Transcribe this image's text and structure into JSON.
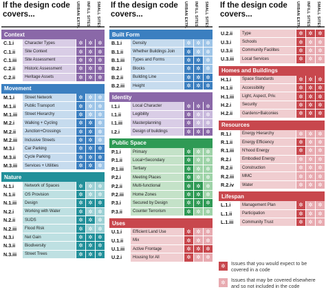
{
  "header": {
    "title": "If the design code covers...",
    "col1": "URBAN EXTN.",
    "col2": "INFILL SITES",
    "col3": "SMALL SITES"
  },
  "icons": {
    "star": "✲"
  },
  "legend": {
    "expected": "Issues that you would expect to be covered in a code",
    "elsewhere": "Issues that may be covered elsewhere and so not included in the code"
  },
  "columns": [
    {
      "sections": [
        {
          "title": "Context",
          "theme": "purple",
          "rows": [
            {
              "code": "C.1.i",
              "label": "Character Types",
              "cells": [
                "d",
                "d",
                "d"
              ]
            },
            {
              "code": "C.1.ii",
              "label": "Site Context",
              "cells": [
                "d",
                "d",
                "d"
              ]
            },
            {
              "code": "C.1.iii",
              "label": "Site Assessment",
              "cells": [
                "d",
                "d",
                "d"
              ]
            },
            {
              "code": "C.2.ii",
              "label": "Historic Assessment",
              "cells": [
                "d",
                "d",
                "d"
              ]
            },
            {
              "code": "C.2.ii",
              "label": "Heritage Assets",
              "cells": [
                "d",
                "d",
                "d"
              ]
            }
          ]
        },
        {
          "title": "Movement",
          "theme": "blue",
          "rows": [
            {
              "code": "M.1.i",
              "label": "Street Network",
              "cells": [
                "d",
                "l",
                "l"
              ]
            },
            {
              "code": "M.1.ii",
              "label": "Public Transport",
              "cells": [
                "d",
                "l",
                "l"
              ]
            },
            {
              "code": "M.1.iii",
              "label": "Street Hierarchy",
              "cells": [
                "d",
                "l",
                "l"
              ]
            },
            {
              "code": "M.2.i",
              "label": "Walking + Cycling",
              "cells": [
                "d",
                "d",
                "l"
              ]
            },
            {
              "code": "M.2.ii",
              "label": "Junction+Crossings",
              "cells": [
                "d",
                "d",
                "l"
              ]
            },
            {
              "code": "M.2.iii",
              "label": "Inclusive Streets",
              "cells": [
                "d",
                "d",
                "l"
              ]
            },
            {
              "code": "M.3.i",
              "label": "Car Parking",
              "cells": [
                "d",
                "d",
                "d"
              ]
            },
            {
              "code": "M.3.ii",
              "label": "Cycle Parking",
              "cells": [
                "d",
                "d",
                "d"
              ]
            },
            {
              "code": "M.3.iii",
              "label": "Services + Utilities",
              "cells": [
                "d",
                "d",
                "l"
              ]
            }
          ]
        },
        {
          "title": "Nature",
          "theme": "teal",
          "rows": [
            {
              "code": "N.1.i",
              "label": "Network of Spaces",
              "cells": [
                "d",
                "l",
                "l"
              ]
            },
            {
              "code": "N.1.ii",
              "label": "OS Provision",
              "cells": [
                "d",
                "l",
                "l"
              ]
            },
            {
              "code": "N.1.iii",
              "label": "Design",
              "cells": [
                "d",
                "d",
                "d"
              ]
            },
            {
              "code": "N.2.i",
              "label": "Working with Water",
              "cells": [
                "d",
                "l",
                "l"
              ]
            },
            {
              "code": "N.2.ii",
              "label": "SUDS",
              "cells": [
                "d",
                "d",
                "l"
              ]
            },
            {
              "code": "N.2.iii",
              "label": "Flood Risk",
              "cells": [
                "d",
                "l",
                "l"
              ]
            },
            {
              "code": "N.3.i",
              "label": "Net Gain",
              "cells": [
                "d",
                "d",
                "d"
              ]
            },
            {
              "code": "N.3.ii",
              "label": "Biodiversity",
              "cells": [
                "d",
                "d",
                "d"
              ]
            },
            {
              "code": "N.3.iii",
              "label": "Street Trees",
              "cells": [
                "d",
                "d",
                "d"
              ]
            }
          ]
        }
      ]
    },
    {
      "sections": [
        {
          "title": "Built Form",
          "theme": "blue",
          "rows": [
            {
              "code": "B.1.i",
              "label": "Density",
              "cells": [
                "l",
                "l",
                "l"
              ]
            },
            {
              "code": "B.1.ii",
              "label": "Whether Buildings Join",
              "cells": [
                "d",
                "l",
                "l"
              ]
            },
            {
              "code": "B.1.iii",
              "label": "Types and Forms",
              "cells": [
                "d",
                "d",
                "l"
              ]
            },
            {
              "code": "B.2.i",
              "label": "Blocks",
              "cells": [
                "d",
                "d",
                "l"
              ]
            },
            {
              "code": "B.2.ii",
              "label": "Building Line",
              "cells": [
                "d",
                "d",
                "d"
              ]
            },
            {
              "code": "B.2.iii",
              "label": "Height",
              "cells": [
                "d",
                "d",
                "d"
              ]
            }
          ]
        },
        {
          "title": "Identity",
          "theme": "purple",
          "rows": [
            {
              "code": "I.1.i",
              "label": "Local Character",
              "cells": [
                "d",
                "d",
                "d"
              ]
            },
            {
              "code": "I.1.ii",
              "label": "Legibility",
              "cells": [
                "d",
                "l",
                "l"
              ]
            },
            {
              "code": "I.1.iii",
              "label": "Masterplanning",
              "cells": [
                "d",
                "l",
                "l"
              ]
            },
            {
              "code": "I.2.i",
              "label": "Design of buildings",
              "cells": [
                "d",
                "d",
                "d"
              ]
            }
          ]
        },
        {
          "title": "Public Space",
          "theme": "green",
          "rows": [
            {
              "code": "P.1.i",
              "label": "Primary",
              "cells": [
                "d",
                "l",
                "l"
              ]
            },
            {
              "code": "P.1.ii",
              "label": "Local+Secondary",
              "cells": [
                "d",
                "l",
                "l"
              ]
            },
            {
              "code": "P.1.iii",
              "label": "Tertiary",
              "cells": [
                "d",
                "l",
                "l"
              ]
            },
            {
              "code": "P.2.i",
              "label": "Meeting Places",
              "cells": [
                "d",
                "l",
                "l"
              ]
            },
            {
              "code": "P.2.ii",
              "label": "Multi-functional",
              "cells": [
                "d",
                "d",
                "l"
              ]
            },
            {
              "code": "P.2.iii",
              "label": "Home Zones",
              "cells": [
                "d",
                "d",
                "l"
              ]
            },
            {
              "code": "P.3.i",
              "label": "Secured by Design",
              "cells": [
                "d",
                "d",
                "d"
              ]
            },
            {
              "code": "P.3.ii",
              "label": "Counter Terrorism",
              "cells": [
                "d",
                "l",
                "l"
              ]
            }
          ]
        },
        {
          "title": "Uses",
          "theme": "red",
          "rows": [
            {
              "code": "U.1.i",
              "label": "Efficient Land Use",
              "cells": [
                "d",
                "l",
                "l"
              ]
            },
            {
              "code": "U.1.ii",
              "label": "Mix",
              "cells": [
                "d",
                "l",
                "l"
              ]
            },
            {
              "code": "U.1.iii",
              "label": "Active Frontage",
              "cells": [
                "d",
                "d",
                "d"
              ]
            },
            {
              "code": "U.2.i",
              "label": "Housing for All",
              "cells": [
                "d",
                "l",
                "l"
              ]
            }
          ]
        }
      ]
    },
    {
      "top_rows": {
        "theme": "red",
        "rows": [
          {
            "code": "U.2.ii",
            "label": "Type",
            "cells": [
              "d",
              "d",
              "d"
            ]
          },
          {
            "code": "U.3.i",
            "label": "Schools",
            "cells": [
              "d",
              "l",
              "l"
            ]
          },
          {
            "code": "U.3.ii",
            "label": "Community Facilites",
            "cells": [
              "d",
              "l",
              "l"
            ]
          },
          {
            "code": "U.3.iii",
            "label": "Local Services",
            "cells": [
              "d",
              "l",
              "l"
            ]
          }
        ]
      },
      "sections": [
        {
          "title": "Homes and Buildings",
          "theme": "red",
          "rows": [
            {
              "code": "H.1.i",
              "label": "Space Standards",
              "cells": [
                "d",
                "d",
                "d"
              ]
            },
            {
              "code": "H.1.ii",
              "label": "Accessibility",
              "cells": [
                "d",
                "d",
                "d"
              ]
            },
            {
              "code": "H.1.iii",
              "label": "Light, Aspect, Priv.",
              "cells": [
                "d",
                "d",
                "d"
              ]
            },
            {
              "code": "H.2.i",
              "label": "Security",
              "cells": [
                "d",
                "d",
                "d"
              ]
            },
            {
              "code": "H.2.ii",
              "label": "Gardens+Balconies",
              "cells": [
                "d",
                "d",
                "d"
              ]
            }
          ]
        },
        {
          "title": "Resources",
          "theme": "red",
          "rows": [
            {
              "code": "R.1.i",
              "label": "Energy Hierarchy",
              "cells": [
                "l",
                "l",
                "l"
              ]
            },
            {
              "code": "R.1.ii",
              "label": "Energy Efficiency",
              "cells": [
                "d",
                "l",
                "l"
              ]
            },
            {
              "code": "R.1.iii",
              "label": "N'hood Energy",
              "cells": [
                "d",
                "l",
                "l"
              ]
            },
            {
              "code": "R.2.i",
              "label": "Embodied Energy",
              "cells": [
                "l",
                "l",
                "l"
              ]
            },
            {
              "code": "R.2.ii",
              "label": "Construction",
              "cells": [
                "l",
                "l",
                "l"
              ]
            },
            {
              "code": "R.2.iii",
              "label": "MMC",
              "cells": [
                "l",
                "l",
                "l"
              ]
            },
            {
              "code": "R.2.iv",
              "label": "Water",
              "cells": [
                "l",
                "l",
                "l"
              ]
            }
          ]
        },
        {
          "title": "Lifespan",
          "theme": "red",
          "rows": [
            {
              "code": "L.1.i",
              "label": "Management Plan",
              "cells": [
                "d",
                "l",
                "l"
              ]
            },
            {
              "code": "L.1.ii",
              "label": "Participation",
              "cells": [
                "d",
                "l",
                "l"
              ]
            },
            {
              "code": "L.1.iii",
              "label": "Community Trust",
              "cells": [
                "d",
                "l",
                "l"
              ]
            }
          ]
        }
      ]
    }
  ]
}
